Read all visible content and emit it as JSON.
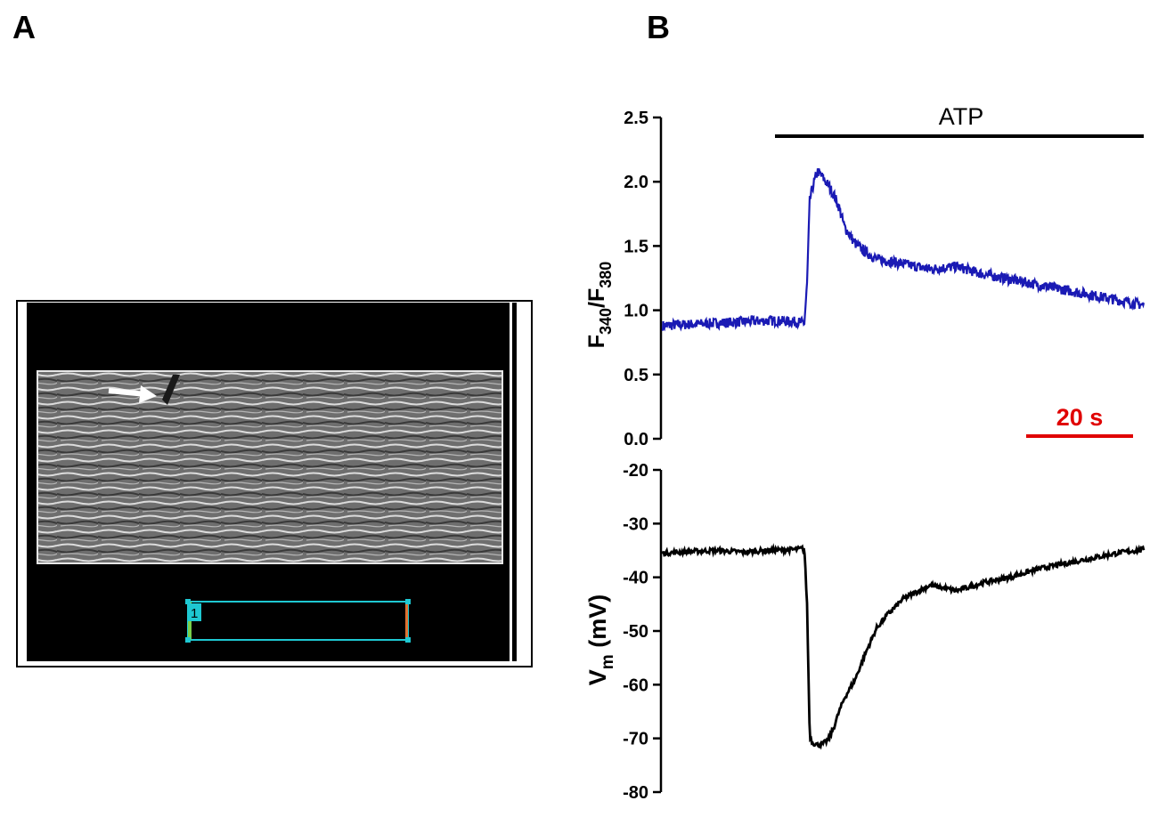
{
  "panels": {
    "a_label": "A",
    "b_label": "B"
  },
  "micrograph": {
    "roi_label": "1",
    "roi_color": "#1ec8d2",
    "arrow_color": "#ffffff"
  },
  "chart_data": [
    {
      "type": "line",
      "title": "",
      "xlabel": "",
      "ylabel_main": "F",
      "ylabel_sub1": "340",
      "ylabel_sep": "/F",
      "ylabel_sub2": "380",
      "ylim": [
        0.0,
        2.5
      ],
      "yticks": [
        0.0,
        0.5,
        1.0,
        1.5,
        2.0,
        2.5
      ],
      "ytick_labels": [
        "0.0",
        "0.5",
        "1.0",
        "1.5",
        "2.0",
        "2.5"
      ],
      "x_range_s": [
        0,
        90
      ],
      "color": "#1a1ab4",
      "annotation": {
        "text": "ATP",
        "start_s": 21,
        "end_s": 90
      },
      "scale_bar": {
        "text": "20 s",
        "length_s": 20,
        "color": "#e00000"
      },
      "series": [
        {
          "name": "F340/F380",
          "x": [
            0,
            5,
            10,
            15,
            20,
            25,
            26.5,
            27,
            27.5,
            28,
            28.5,
            29,
            30,
            31,
            32,
            33,
            34,
            36,
            38,
            40,
            45,
            50,
            55,
            60,
            65,
            70,
            75,
            80,
            85,
            90
          ],
          "y": [
            0.88,
            0.89,
            0.9,
            0.91,
            0.92,
            0.91,
            0.9,
            1.2,
            1.85,
            1.95,
            2.02,
            2.08,
            2.03,
            1.97,
            1.9,
            1.8,
            1.65,
            1.52,
            1.45,
            1.4,
            1.36,
            1.32,
            1.34,
            1.28,
            1.24,
            1.2,
            1.16,
            1.12,
            1.08,
            1.04
          ]
        }
      ]
    },
    {
      "type": "line",
      "title": "",
      "xlabel": "",
      "ylabel_main": "V",
      "ylabel_sub": "m",
      "ylabel_unit": " (mV)",
      "ylim": [
        -80,
        -20
      ],
      "yticks": [
        -80,
        -70,
        -60,
        -50,
        -40,
        -30,
        -20
      ],
      "ytick_labels": [
        "-80",
        "-70",
        "-60",
        "-50",
        "-40",
        "-30",
        "-20"
      ],
      "x_range_s": [
        0,
        90
      ],
      "color": "#000000",
      "series": [
        {
          "name": "Vm",
          "x": [
            0,
            5,
            10,
            15,
            20,
            25,
            26.5,
            27,
            27.5,
            28,
            29,
            30,
            31,
            32,
            33,
            34,
            36,
            38,
            40,
            42,
            45,
            50,
            55,
            60,
            65,
            70,
            75,
            80,
            85,
            90
          ],
          "y": [
            -35.5,
            -35.2,
            -35.0,
            -35.3,
            -35.0,
            -34.8,
            -34.6,
            -45.0,
            -69.5,
            -70.8,
            -71.2,
            -71.0,
            -70.2,
            -68.0,
            -65.0,
            -62.5,
            -59.0,
            -54.0,
            -49.5,
            -47.0,
            -44.0,
            -41.5,
            -42.5,
            -41.0,
            -40.0,
            -38.5,
            -37.5,
            -36.5,
            -35.5,
            -34.8
          ]
        }
      ]
    }
  ]
}
